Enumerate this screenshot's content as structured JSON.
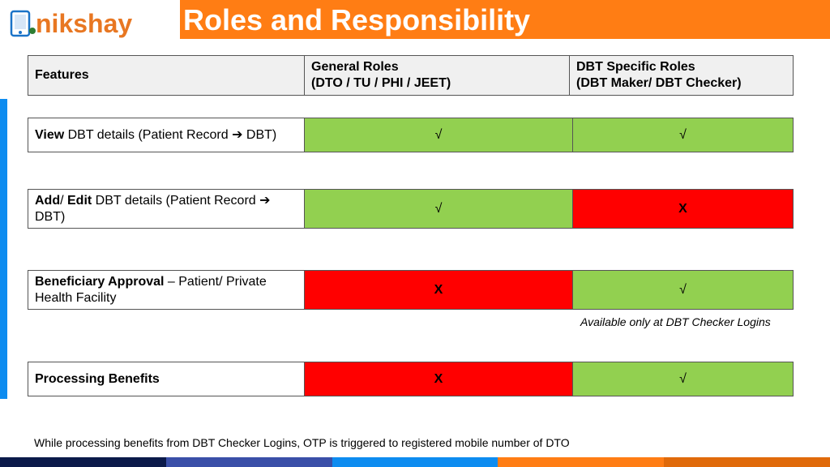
{
  "logo": {
    "text": "nikshay",
    "colors": {
      "text": "#e87722",
      "icon_screen": "#1a73c8",
      "icon_dot": "#2e7d32"
    }
  },
  "title": "Roles and Responsibility",
  "header": {
    "features": "Features",
    "general_line1": "General Roles",
    "general_line2": "(DTO / TU / PHI / JEET)",
    "dbt_line1": "DBT Specific Roles",
    "dbt_line2": "(DBT Maker/ DBT Checker)"
  },
  "rows": [
    {
      "feature_bold": "View",
      "feature_text": " DBT details (Patient Record ",
      "feature_arrow": "➔",
      "feature_tail": " DBT)",
      "general": "√",
      "dbt": "√"
    },
    {
      "feature_bold1": "Add",
      "feature_sep": "/ ",
      "feature_bold2": "Edit",
      "feature_text": " DBT details (Patient Record ",
      "feature_arrow": "➔",
      "feature_tail": " DBT)",
      "general": "√",
      "dbt": "X"
    },
    {
      "feature_bold": "Beneficiary Approval",
      "feature_text": " – Patient/ Private Health Facility",
      "general": "X",
      "dbt": "√"
    },
    {
      "feature_bold": "Processing Benefits",
      "general": "X",
      "dbt": "√"
    }
  ],
  "note": "Available only at DBT Checker Logins",
  "footer_note": "While processing benefits from DBT Checker Logins, OTP is triggered to registered mobile number of DTO",
  "colors": {
    "title_bar": "#ff7d14",
    "allowed": "#92d050",
    "denied": "#ff0000",
    "accent": "#0d8cf0",
    "bottom_bar": [
      "#0b1a4a",
      "#3a4fa8",
      "#0d8cf0",
      "#ff7d14",
      "#e06a0a"
    ]
  }
}
